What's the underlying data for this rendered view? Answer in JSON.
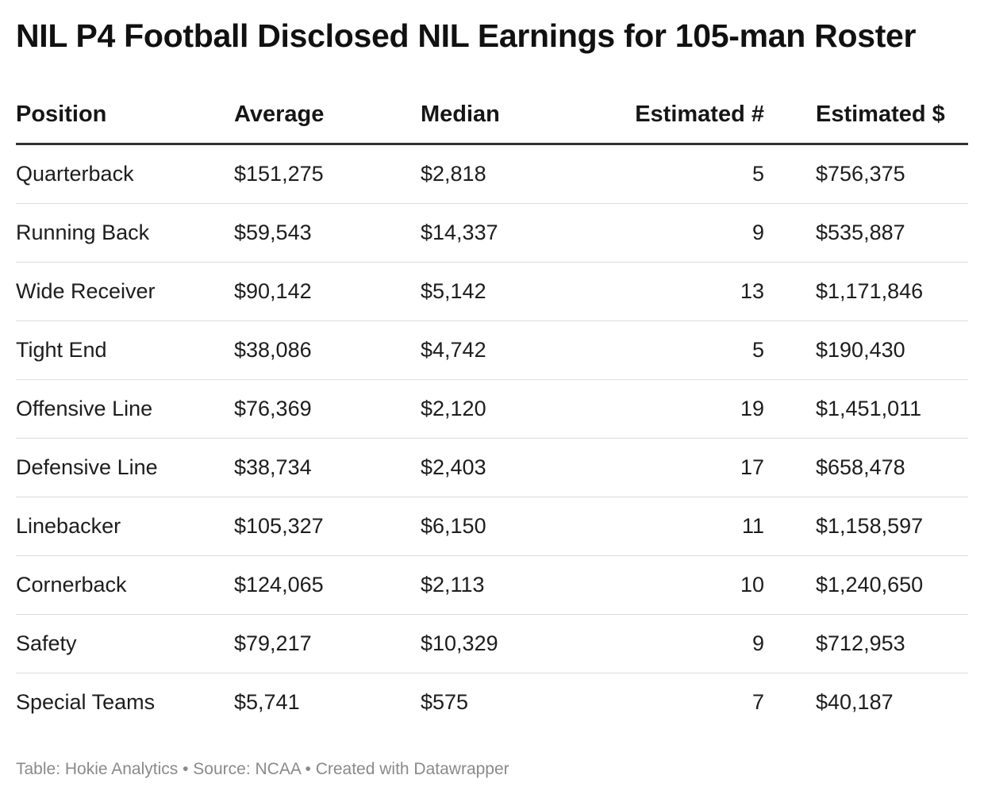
{
  "chart_data": {
    "type": "table",
    "title": "NIL P4 Football Disclosed NIL Earnings for 105-man Roster",
    "columns": [
      "Position",
      "Average",
      "Median",
      "Estimated #",
      "Estimated $"
    ],
    "rows": [
      [
        "Quarterback",
        "$151,275",
        "$2,818",
        "5",
        "$756,375"
      ],
      [
        "Running Back",
        "$59,543",
        "$14,337",
        "9",
        "$535,887"
      ],
      [
        "Wide Receiver",
        "$90,142",
        "$5,142",
        "13",
        "$1,171,846"
      ],
      [
        "Tight End",
        "$38,086",
        "$4,742",
        "5",
        "$190,430"
      ],
      [
        "Offensive Line",
        "$76,369",
        "$2,120",
        "19",
        "$1,451,011"
      ],
      [
        "Defensive Line",
        "$38,734",
        "$2,403",
        "17",
        "$658,478"
      ],
      [
        "Linebacker",
        "$105,327",
        "$6,150",
        "11",
        "$1,158,597"
      ],
      [
        "Cornerback",
        "$124,065",
        "$2,113",
        "10",
        "$1,240,650"
      ],
      [
        "Safety",
        "$79,217",
        "$10,329",
        "9",
        "$712,953"
      ],
      [
        "Special Teams",
        "$5,741",
        "$575",
        "7",
        "$40,187"
      ]
    ],
    "footer": "Table: Hokie Analytics • Source: NCAA • Created with Datawrapper"
  }
}
